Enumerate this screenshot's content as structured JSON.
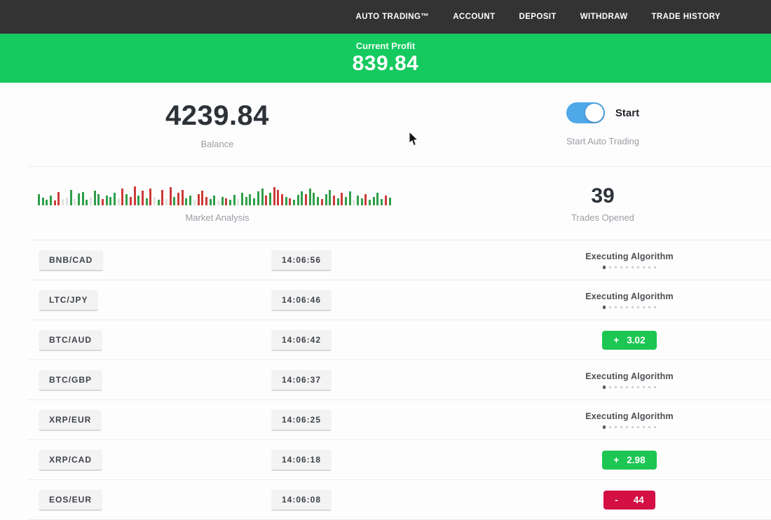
{
  "nav": {
    "items": [
      "AUTO TRADING™",
      "ACCOUNT",
      "DEPOSIT",
      "WITHDRAW",
      "TRADE HISTORY"
    ]
  },
  "banner": {
    "label": "Current Profit",
    "value": "839.84"
  },
  "balance": {
    "value": "4239.84",
    "label": "Balance"
  },
  "auto_trading": {
    "toggle_state": "on",
    "toggle_label": "Start",
    "label": "Start Auto Trading"
  },
  "market": {
    "label": "Market Analysis",
    "chart": {
      "type": "bar",
      "note": "mini market-analysis sparkline, bottom-aligned bars; h = height px, c = g(green)/r(red)/p(pale)",
      "bars": [
        [
          16,
          "g"
        ],
        [
          11,
          "g"
        ],
        [
          8,
          "g"
        ],
        [
          14,
          "g"
        ],
        [
          7,
          "r"
        ],
        [
          19,
          "r"
        ],
        [
          9,
          "p"
        ],
        [
          12,
          "p"
        ],
        [
          22,
          "g"
        ],
        [
          9,
          "p"
        ],
        [
          17,
          "g"
        ],
        [
          19,
          "g"
        ],
        [
          8,
          "g"
        ],
        [
          12,
          "p"
        ],
        [
          21,
          "g"
        ],
        [
          16,
          "g"
        ],
        [
          9,
          "r"
        ],
        [
          14,
          "g"
        ],
        [
          12,
          "g"
        ],
        [
          18,
          "g"
        ],
        [
          10,
          "p"
        ],
        [
          24,
          "r"
        ],
        [
          16,
          "g"
        ],
        [
          12,
          "r"
        ],
        [
          27,
          "r"
        ],
        [
          14,
          "g"
        ],
        [
          21,
          "r"
        ],
        [
          10,
          "g"
        ],
        [
          24,
          "r"
        ],
        [
          12,
          "p"
        ],
        [
          8,
          "g"
        ],
        [
          22,
          "r"
        ],
        [
          9,
          "p"
        ],
        [
          26,
          "r"
        ],
        [
          12,
          "g"
        ],
        [
          18,
          "r"
        ],
        [
          22,
          "r"
        ],
        [
          10,
          "g"
        ],
        [
          14,
          "g"
        ],
        [
          8,
          "p"
        ],
        [
          16,
          "r"
        ],
        [
          21,
          "r"
        ],
        [
          12,
          "r"
        ],
        [
          9,
          "g"
        ],
        [
          14,
          "g"
        ],
        [
          7,
          "p"
        ],
        [
          12,
          "g"
        ],
        [
          10,
          "r"
        ],
        [
          8,
          "g"
        ],
        [
          15,
          "g"
        ],
        [
          9,
          "p"
        ],
        [
          18,
          "g"
        ],
        [
          12,
          "g"
        ],
        [
          16,
          "g"
        ],
        [
          10,
          "g"
        ],
        [
          20,
          "g"
        ],
        [
          24,
          "g"
        ],
        [
          14,
          "r"
        ],
        [
          18,
          "g"
        ],
        [
          26,
          "r"
        ],
        [
          22,
          "r"
        ],
        [
          16,
          "r"
        ],
        [
          12,
          "g"
        ],
        [
          10,
          "r"
        ],
        [
          8,
          "g"
        ],
        [
          15,
          "g"
        ],
        [
          20,
          "g"
        ],
        [
          16,
          "r"
        ],
        [
          24,
          "g"
        ],
        [
          18,
          "g"
        ],
        [
          12,
          "g"
        ],
        [
          9,
          "r"
        ],
        [
          16,
          "g"
        ],
        [
          22,
          "g"
        ],
        [
          14,
          "r"
        ],
        [
          10,
          "g"
        ],
        [
          18,
          "r"
        ],
        [
          12,
          "g"
        ],
        [
          20,
          "g"
        ],
        [
          8,
          "p"
        ],
        [
          14,
          "g"
        ],
        [
          10,
          "g"
        ],
        [
          16,
          "r"
        ],
        [
          8,
          "g"
        ],
        [
          12,
          "g"
        ],
        [
          18,
          "g"
        ],
        [
          9,
          "g"
        ],
        [
          14,
          "r"
        ],
        [
          11,
          "g"
        ]
      ]
    }
  },
  "trades_opened": {
    "value": "39",
    "label": "Trades Opened"
  },
  "trades": [
    {
      "pair": "BNB/CAD",
      "time": "14:06:56",
      "status": "executing",
      "status_label": "Executing Algorithm"
    },
    {
      "pair": "LTC/JPY",
      "time": "14:06:46",
      "status": "executing",
      "status_label": "Executing Algorithm"
    },
    {
      "pair": "BTC/AUD",
      "time": "14:06:42",
      "status": "profit",
      "sign": "+",
      "amount": "3.02"
    },
    {
      "pair": "BTC/GBP",
      "time": "14:06:37",
      "status": "executing",
      "status_label": "Executing Algorithm"
    },
    {
      "pair": "XRP/EUR",
      "time": "14:06:25",
      "status": "executing",
      "status_label": "Executing Algorithm"
    },
    {
      "pair": "XRP/CAD",
      "time": "14:06:18",
      "status": "profit",
      "sign": "+",
      "amount": "2.98"
    },
    {
      "pair": "EOS/EUR",
      "time": "14:06:08",
      "status": "loss",
      "sign": "-",
      "amount": "44"
    }
  ],
  "colors": {
    "topbar": "#333333",
    "accent_green": "#15ca5f",
    "profit_green": "#1dc653",
    "loss_red": "#d30f44",
    "toggle_blue": "#4fa8e8"
  }
}
